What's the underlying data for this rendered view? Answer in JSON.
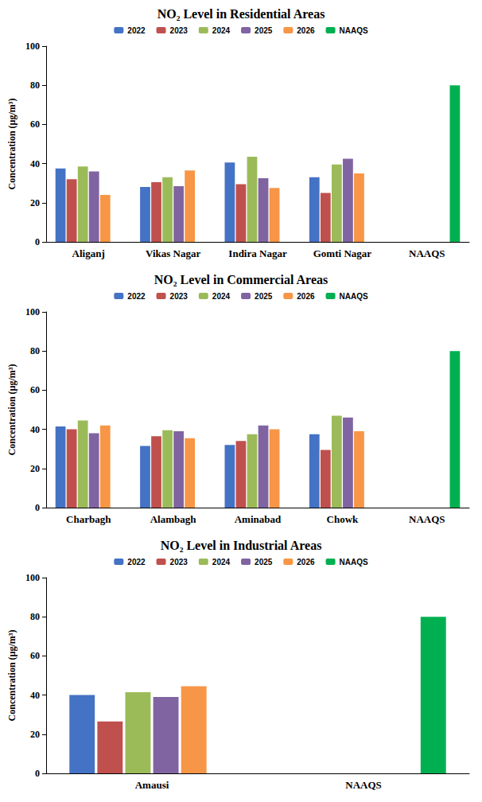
{
  "chart_data": [
    {
      "type": "bar",
      "title": "NO₂ Level in Residential Areas",
      "ylabel": "Concentration (µg/m³)",
      "categories": [
        "Aliganj",
        "Vikas Nagar",
        "Indira Nagar",
        "Gomti Nagar",
        "NAAQS"
      ],
      "series": [
        {
          "name": "2022",
          "color": "#4472c4",
          "values": [
            37.5,
            28,
            40.5,
            33,
            null
          ]
        },
        {
          "name": "2023",
          "color": "#c0504d",
          "values": [
            32,
            30.5,
            29.5,
            25,
            null
          ]
        },
        {
          "name": "2024",
          "color": "#9bbb59",
          "values": [
            38.5,
            33,
            43.5,
            39.5,
            null
          ]
        },
        {
          "name": "2025",
          "color": "#8064a2",
          "values": [
            36,
            28.5,
            32.5,
            42.5,
            null
          ]
        },
        {
          "name": "2026",
          "color": "#f79646",
          "values": [
            24,
            36.5,
            27.5,
            35,
            null
          ]
        },
        {
          "name": "NAAQS",
          "color": "#00b050",
          "values": [
            null,
            null,
            null,
            null,
            80
          ]
        }
      ],
      "ylim": [
        0,
        100
      ],
      "yticks": [
        0,
        20,
        40,
        60,
        80,
        100
      ],
      "grid": false,
      "legend": "top"
    },
    {
      "type": "bar",
      "title": "NO₂ Level in Commercial Areas",
      "ylabel": "Concentration (µg/m³)",
      "categories": [
        "Charbagh",
        "Alambagh",
        "Aminabad",
        "Chowk",
        "NAAQS"
      ],
      "series": [
        {
          "name": "2022",
          "color": "#4472c4",
          "values": [
            41.5,
            31.5,
            32,
            37.5,
            null
          ]
        },
        {
          "name": "2023",
          "color": "#c0504d",
          "values": [
            40,
            36.5,
            34,
            29.5,
            null
          ]
        },
        {
          "name": "2024",
          "color": "#9bbb59",
          "values": [
            44.5,
            39.5,
            37.5,
            47,
            null
          ]
        },
        {
          "name": "2025",
          "color": "#8064a2",
          "values": [
            38,
            39,
            42,
            46,
            null
          ]
        },
        {
          "name": "2026",
          "color": "#f79646",
          "values": [
            42,
            35.5,
            40,
            39,
            null
          ]
        },
        {
          "name": "NAAQS",
          "color": "#00b050",
          "values": [
            null,
            null,
            null,
            null,
            80
          ]
        }
      ],
      "ylim": [
        0,
        100
      ],
      "yticks": [
        0,
        20,
        40,
        60,
        80,
        100
      ],
      "grid": false,
      "legend": "top"
    },
    {
      "type": "bar",
      "title": "NO₂ Level in Industrial Areas",
      "ylabel": "Concentration (µg/m³)",
      "categories": [
        "Amausi",
        "NAAQS"
      ],
      "series": [
        {
          "name": "2022",
          "color": "#4472c4",
          "values": [
            40,
            null
          ]
        },
        {
          "name": "2023",
          "color": "#c0504d",
          "values": [
            26.5,
            null
          ]
        },
        {
          "name": "2024",
          "color": "#9bbb59",
          "values": [
            41.5,
            null
          ]
        },
        {
          "name": "2025",
          "color": "#8064a2",
          "values": [
            39,
            null
          ]
        },
        {
          "name": "2026",
          "color": "#f79646",
          "values": [
            44.5,
            null
          ]
        },
        {
          "name": "NAAQS",
          "color": "#00b050",
          "values": [
            null,
            80
          ]
        }
      ],
      "ylim": [
        0,
        100
      ],
      "yticks": [
        0,
        20,
        40,
        60,
        80,
        100
      ],
      "grid": false,
      "legend": "top"
    }
  ]
}
